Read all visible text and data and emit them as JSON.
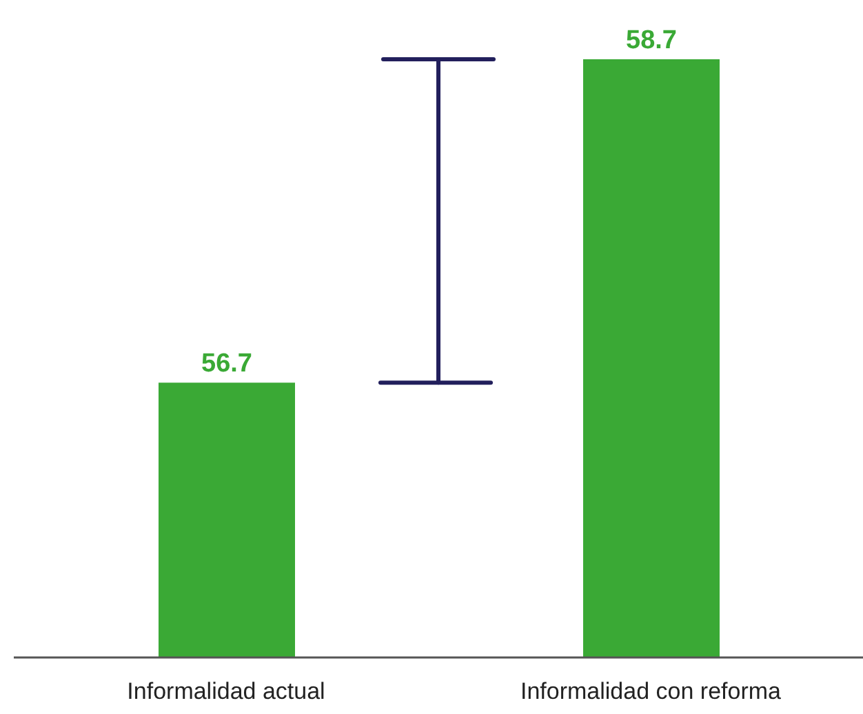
{
  "chart_data": {
    "type": "bar",
    "categories": [
      "Informalidad actual",
      "Informalidad con reforma"
    ],
    "values": [
      56.7,
      58.7
    ],
    "color": "#3aa935",
    "ylim": [
      55,
      58.7
    ],
    "data_labels": true,
    "grid": false,
    "legend": false
  }
}
